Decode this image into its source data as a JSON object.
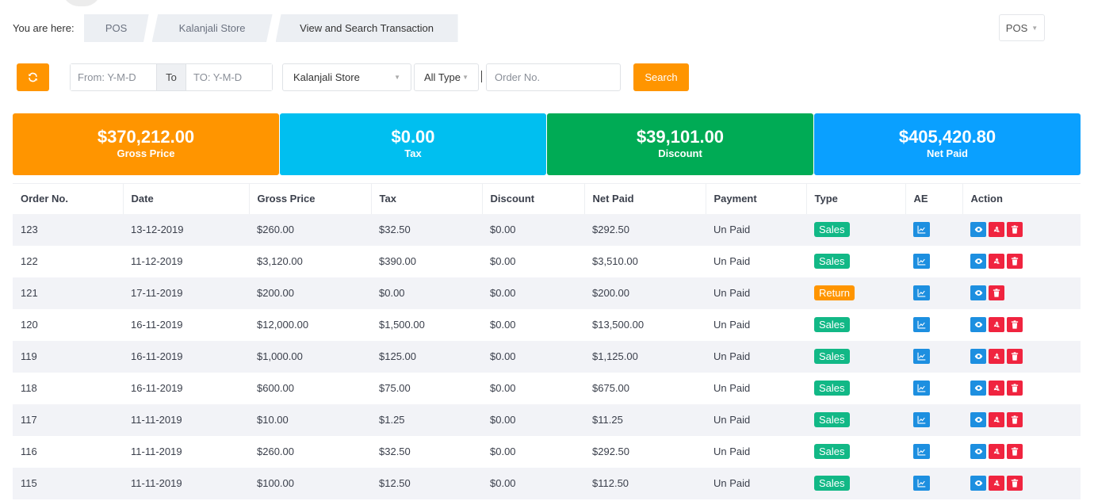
{
  "colors": {
    "orange": "#ff9500",
    "cyan": "#00bff0",
    "green": "#00ab55",
    "blue": "#0aa0ff",
    "sales_badge": "#12b886",
    "return_badge": "#ff9500",
    "view_btn": "#1d8fe0",
    "refund_btn": "#f0243f",
    "delete_btn": "#f0243f"
  },
  "breadcrumb": {
    "label": "You are here:",
    "items": [
      "POS",
      "Kalanjali Store",
      "View and Search Transaction"
    ]
  },
  "top_dropdown": {
    "label": "POS"
  },
  "filters": {
    "from_placeholder": "From: Y-M-D",
    "to_label": "To",
    "to_placeholder": "TO: Y-M-D",
    "store_value": "Kalanjali Store",
    "type_value": "All Type",
    "order_placeholder": "Order No.",
    "search_label": "Search"
  },
  "summary": [
    {
      "amount": "$370,212.00",
      "label": "Gross Price",
      "color": "#ff9500"
    },
    {
      "amount": "$0.00",
      "label": "Tax",
      "color": "#00bff0"
    },
    {
      "amount": "$39,101.00",
      "label": "Discount",
      "color": "#00ab55"
    },
    {
      "amount": "$405,420.80",
      "label": "Net Paid",
      "color": "#0aa0ff"
    }
  ],
  "table": {
    "headers": [
      "Order No.",
      "Date",
      "Gross Price",
      "Tax",
      "Discount",
      "Net Paid",
      "Payment",
      "Type",
      "AE",
      "Action"
    ],
    "rows": [
      {
        "order": "123",
        "date": "13-12-2019",
        "gross": "$260.00",
        "tax": "$32.50",
        "discount": "$0.00",
        "net": "$292.50",
        "payment": "Un Paid",
        "type": "Sales",
        "actions": [
          "view",
          "refund",
          "delete"
        ]
      },
      {
        "order": "122",
        "date": "11-12-2019",
        "gross": "$3,120.00",
        "tax": "$390.00",
        "discount": "$0.00",
        "net": "$3,510.00",
        "payment": "Un Paid",
        "type": "Sales",
        "actions": [
          "view",
          "refund",
          "delete"
        ]
      },
      {
        "order": "121",
        "date": "17-11-2019",
        "gross": "$200.00",
        "tax": "$0.00",
        "discount": "$0.00",
        "net": "$200.00",
        "payment": "Un Paid",
        "type": "Return",
        "actions": [
          "view",
          "delete"
        ]
      },
      {
        "order": "120",
        "date": "16-11-2019",
        "gross": "$12,000.00",
        "tax": "$1,500.00",
        "discount": "$0.00",
        "net": "$13,500.00",
        "payment": "Un Paid",
        "type": "Sales",
        "actions": [
          "view",
          "refund",
          "delete"
        ]
      },
      {
        "order": "119",
        "date": "16-11-2019",
        "gross": "$1,000.00",
        "tax": "$125.00",
        "discount": "$0.00",
        "net": "$1,125.00",
        "payment": "Un Paid",
        "type": "Sales",
        "actions": [
          "view",
          "refund",
          "delete"
        ]
      },
      {
        "order": "118",
        "date": "16-11-2019",
        "gross": "$600.00",
        "tax": "$75.00",
        "discount": "$0.00",
        "net": "$675.00",
        "payment": "Un Paid",
        "type": "Sales",
        "actions": [
          "view",
          "refund",
          "delete"
        ]
      },
      {
        "order": "117",
        "date": "11-11-2019",
        "gross": "$10.00",
        "tax": "$1.25",
        "discount": "$0.00",
        "net": "$11.25",
        "payment": "Un Paid",
        "type": "Sales",
        "actions": [
          "view",
          "refund",
          "delete"
        ]
      },
      {
        "order": "116",
        "date": "11-11-2019",
        "gross": "$260.00",
        "tax": "$32.50",
        "discount": "$0.00",
        "net": "$292.50",
        "payment": "Un Paid",
        "type": "Sales",
        "actions": [
          "view",
          "refund",
          "delete"
        ]
      },
      {
        "order": "115",
        "date": "11-11-2019",
        "gross": "$100.00",
        "tax": "$12.50",
        "discount": "$0.00",
        "net": "$112.50",
        "payment": "Un Paid",
        "type": "Sales",
        "actions": [
          "view",
          "refund",
          "delete"
        ]
      }
    ]
  }
}
